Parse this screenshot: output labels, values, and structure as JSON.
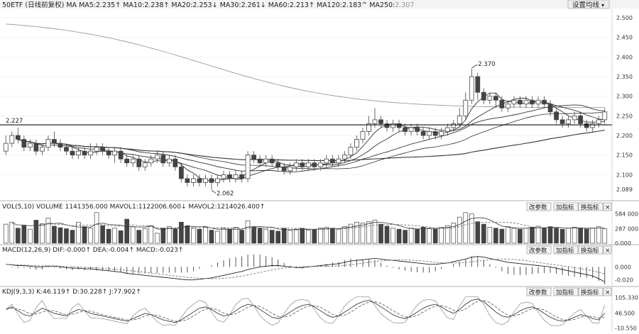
{
  "header": {
    "symbol": "50ETF (日线前复权)",
    "indicator": "MA",
    "ma_values": [
      {
        "label": "MA5:",
        "value": "2.235",
        "arrow": "↑"
      },
      {
        "label": "MA10:",
        "value": "2.238",
        "arrow": "↑"
      },
      {
        "label": "MA20:",
        "value": "2.253",
        "arrow": "↓"
      },
      {
        "label": "MA30:",
        "value": "2.261",
        "arrow": "↓"
      },
      {
        "label": "MA60:",
        "value": "2.213",
        "arrow": "↑"
      },
      {
        "label": "MA120:",
        "value": "2.183",
        "arrow": "^"
      },
      {
        "label": "MA250:",
        "value": "2.307",
        "arrow": ""
      }
    ],
    "settings_button": "设置均线",
    "settings_arrow": "▾"
  },
  "main_panel": {
    "y_ticks": [
      "2.500",
      "2.450",
      "2.400",
      "2.350",
      "2.300",
      "2.250",
      "2.200",
      "2.150",
      "2.100"
    ],
    "y_bottom_label": "2.089",
    "ref_line_label": "2.227",
    "high_annotation": "2.370",
    "low_annotation": "2.062"
  },
  "vol_panel": {
    "title": "VOL(5,10)",
    "volume_label": "VOLUME",
    "volume_value": "1141356.000",
    "mavol1_label": "MAVOL1:",
    "mavol1_value": "1122006.600",
    "mavol1_arrow": "↓",
    "mavol2_label": "MAVOL2:",
    "mavol2_value": "1214026.400",
    "mavol2_arrow": "↑",
    "y_ticks": [
      "584 000",
      "287 000",
      "0.000"
    ],
    "buttons": [
      "改参数",
      "加指标",
      "换指标"
    ],
    "close": "×"
  },
  "macd_panel": {
    "title": "MACD(12,26,9)",
    "dif_label": "DIF:",
    "dif_value": "-0.000",
    "dif_arrow": "↑",
    "dea_label": "DEA:",
    "dea_value": "-0.004",
    "dea_arrow": "↑",
    "macd_label": "MACD:",
    "macd_value": "-0.023",
    "macd_arrow": "↑",
    "y_ticks": [
      "0.000",
      "-0.020"
    ],
    "buttons": [
      "改参数",
      "加指标",
      "换指标"
    ],
    "close": "×"
  },
  "kdj_panel": {
    "title": "KDJ(9,3,3)",
    "k_label": "K:",
    "k_value": "46.119",
    "k_arrow": "↑",
    "d_label": "D:",
    "d_value": "30.228",
    "d_arrow": "↑",
    "j_label": "J:",
    "j_value": "77.902",
    "j_arrow": "↑",
    "y_ticks": [
      "105.330",
      "46.500",
      "-10.550"
    ],
    "buttons": [
      "改参数",
      "加指标",
      "换指标"
    ],
    "close": "×"
  },
  "colors": {
    "background": "#ffffff",
    "candle_up": "#444444",
    "candle_down": "#444444",
    "ma_line": "#333333",
    "ma250_line": "#999999",
    "ref_line": "#111111",
    "grid": "#dddddd"
  },
  "chart_data": {
    "type": "candlestick",
    "title": "50ETF (日线前复权)",
    "ylim": [
      2.05,
      2.52
    ],
    "reference_line": 2.227,
    "high_marker": 2.37,
    "low_marker": 2.062,
    "candles": [
      [
        2.16,
        2.18,
        2.2,
        2.15
      ],
      [
        2.18,
        2.2,
        2.21,
        2.17
      ],
      [
        2.2,
        2.19,
        2.22,
        2.18
      ],
      [
        2.19,
        2.17,
        2.2,
        2.16
      ],
      [
        2.17,
        2.18,
        2.19,
        2.16
      ],
      [
        2.18,
        2.16,
        2.19,
        2.15
      ],
      [
        2.16,
        2.17,
        2.18,
        2.15
      ],
      [
        2.17,
        2.19,
        2.2,
        2.16
      ],
      [
        2.19,
        2.18,
        2.21,
        2.17
      ],
      [
        2.18,
        2.17,
        2.19,
        2.16
      ],
      [
        2.17,
        2.16,
        2.18,
        2.15
      ],
      [
        2.16,
        2.15,
        2.17,
        2.14
      ],
      [
        2.15,
        2.16,
        2.17,
        2.14
      ],
      [
        2.16,
        2.15,
        2.17,
        2.14
      ],
      [
        2.15,
        2.16,
        2.18,
        2.14
      ],
      [
        2.16,
        2.17,
        2.18,
        2.15
      ],
      [
        2.17,
        2.16,
        2.18,
        2.15
      ],
      [
        2.16,
        2.15,
        2.17,
        2.14
      ],
      [
        2.15,
        2.16,
        2.17,
        2.13
      ],
      [
        2.16,
        2.14,
        2.17,
        2.13
      ],
      [
        2.14,
        2.13,
        2.15,
        2.12
      ],
      [
        2.13,
        2.14,
        2.15,
        2.12
      ],
      [
        2.14,
        2.12,
        2.15,
        2.11
      ],
      [
        2.12,
        2.13,
        2.14,
        2.11
      ],
      [
        2.13,
        2.14,
        2.15,
        2.12
      ],
      [
        2.14,
        2.15,
        2.16,
        2.13
      ],
      [
        2.15,
        2.13,
        2.16,
        2.12
      ],
      [
        2.13,
        2.14,
        2.15,
        2.12
      ],
      [
        2.14,
        2.12,
        2.15,
        2.11
      ],
      [
        2.12,
        2.09,
        2.13,
        2.08
      ],
      [
        2.09,
        2.08,
        2.1,
        2.07
      ],
      [
        2.08,
        2.09,
        2.1,
        2.07
      ],
      [
        2.09,
        2.08,
        2.1,
        2.07
      ],
      [
        2.08,
        2.09,
        2.1,
        2.07
      ],
      [
        2.09,
        2.08,
        2.1,
        2.062
      ],
      [
        2.08,
        2.09,
        2.1,
        2.07
      ],
      [
        2.09,
        2.1,
        2.11,
        2.08
      ],
      [
        2.1,
        2.09,
        2.11,
        2.08
      ],
      [
        2.09,
        2.1,
        2.11,
        2.08
      ],
      [
        2.1,
        2.09,
        2.11,
        2.08
      ],
      [
        2.09,
        2.15,
        2.16,
        2.08
      ],
      [
        2.15,
        2.14,
        2.16,
        2.13
      ],
      [
        2.14,
        2.13,
        2.15,
        2.12
      ],
      [
        2.13,
        2.14,
        2.15,
        2.12
      ],
      [
        2.14,
        2.13,
        2.15,
        2.12
      ],
      [
        2.13,
        2.12,
        2.14,
        2.11
      ],
      [
        2.12,
        2.11,
        2.13,
        2.1
      ],
      [
        2.11,
        2.12,
        2.13,
        2.1
      ],
      [
        2.12,
        2.13,
        2.14,
        2.11
      ],
      [
        2.13,
        2.12,
        2.14,
        2.11
      ],
      [
        2.12,
        2.13,
        2.14,
        2.11
      ],
      [
        2.13,
        2.12,
        2.14,
        2.11
      ],
      [
        2.12,
        2.13,
        2.14,
        2.11
      ],
      [
        2.13,
        2.14,
        2.15,
        2.12
      ],
      [
        2.14,
        2.13,
        2.15,
        2.12
      ],
      [
        2.13,
        2.14,
        2.15,
        2.12
      ],
      [
        2.14,
        2.15,
        2.16,
        2.13
      ],
      [
        2.15,
        2.17,
        2.18,
        2.14
      ],
      [
        2.17,
        2.19,
        2.2,
        2.16
      ],
      [
        2.19,
        2.21,
        2.22,
        2.18
      ],
      [
        2.21,
        2.23,
        2.25,
        2.2
      ],
      [
        2.23,
        2.24,
        2.27,
        2.22
      ],
      [
        2.24,
        2.23,
        2.25,
        2.22
      ],
      [
        2.23,
        2.22,
        2.24,
        2.21
      ],
      [
        2.22,
        2.23,
        2.24,
        2.21
      ],
      [
        2.23,
        2.22,
        2.24,
        2.21
      ],
      [
        2.22,
        2.21,
        2.23,
        2.2
      ],
      [
        2.21,
        2.22,
        2.23,
        2.2
      ],
      [
        2.22,
        2.21,
        2.23,
        2.2
      ],
      [
        2.21,
        2.2,
        2.22,
        2.19
      ],
      [
        2.2,
        2.21,
        2.22,
        2.19
      ],
      [
        2.21,
        2.2,
        2.22,
        2.19
      ],
      [
        2.2,
        2.21,
        2.22,
        2.19
      ],
      [
        2.21,
        2.22,
        2.23,
        2.2
      ],
      [
        2.22,
        2.23,
        2.24,
        2.21
      ],
      [
        2.23,
        2.25,
        2.27,
        2.22
      ],
      [
        2.25,
        2.29,
        2.31,
        2.24
      ],
      [
        2.29,
        2.35,
        2.37,
        2.28
      ],
      [
        2.35,
        2.31,
        2.36,
        2.29
      ],
      [
        2.31,
        2.29,
        2.32,
        2.28
      ],
      [
        2.29,
        2.3,
        2.31,
        2.28
      ],
      [
        2.3,
        2.29,
        2.31,
        2.27
      ],
      [
        2.29,
        2.27,
        2.3,
        2.26
      ],
      [
        2.27,
        2.28,
        2.29,
        2.26
      ],
      [
        2.28,
        2.29,
        2.3,
        2.27
      ],
      [
        2.29,
        2.28,
        2.3,
        2.27
      ],
      [
        2.28,
        2.29,
        2.3,
        2.27
      ],
      [
        2.29,
        2.28,
        2.3,
        2.27
      ],
      [
        2.28,
        2.29,
        2.3,
        2.27
      ],
      [
        2.29,
        2.28,
        2.3,
        2.27
      ],
      [
        2.28,
        2.26,
        2.29,
        2.25
      ],
      [
        2.26,
        2.24,
        2.27,
        2.23
      ],
      [
        2.24,
        2.23,
        2.25,
        2.22
      ],
      [
        2.23,
        2.24,
        2.25,
        2.22
      ],
      [
        2.24,
        2.25,
        2.26,
        2.23
      ],
      [
        2.25,
        2.23,
        2.26,
        2.22
      ],
      [
        2.23,
        2.22,
        2.24,
        2.21
      ],
      [
        2.22,
        2.23,
        2.24,
        2.21
      ],
      [
        2.23,
        2.24,
        2.25,
        2.22
      ],
      [
        2.24,
        2.26,
        2.27,
        2.23
      ]
    ],
    "volume": [
      380,
      420,
      300,
      350,
      280,
      460,
      390,
      500,
      340,
      310,
      290,
      260,
      420,
      330,
      300,
      610,
      350,
      280,
      300,
      250,
      480,
      330,
      260,
      290,
      350,
      200,
      300,
      330,
      280,
      420,
      350,
      300,
      280,
      320,
      260,
      240,
      300,
      280,
      320,
      260,
      450,
      330,
      300,
      280,
      260,
      240,
      300,
      260,
      280,
      300,
      260,
      280,
      300,
      320,
      300,
      280,
      330,
      380,
      420,
      400,
      430,
      460,
      380,
      340,
      300,
      280,
      260,
      300,
      280,
      320,
      300,
      280,
      320,
      350,
      400,
      520,
      610,
      584,
      430,
      380,
      320,
      300,
      280,
      330,
      300,
      280,
      300,
      320,
      340,
      300,
      330,
      300,
      280,
      300,
      320,
      300,
      280,
      300,
      330,
      287
    ],
    "macd": [
      0.004,
      0.003,
      0.002,
      0.002,
      0.001,
      0.0,
      0.0,
      0.001,
      0.001,
      0.0,
      -0.001,
      -0.002,
      -0.002,
      -0.003,
      -0.003,
      -0.004,
      -0.005,
      -0.006,
      -0.007,
      -0.008,
      -0.01,
      -0.011,
      -0.012,
      -0.013,
      -0.014,
      -0.015,
      -0.016,
      -0.017,
      -0.018,
      -0.019,
      -0.02,
      -0.02,
      -0.019,
      -0.018,
      -0.017,
      -0.015,
      -0.013,
      -0.011,
      -0.009,
      -0.007,
      -0.004,
      -0.002,
      0.0,
      0.001,
      0.002,
      0.002,
      0.001,
      0.0,
      -0.001,
      -0.001,
      0.0,
      0.001,
      0.002,
      0.003,
      0.004,
      0.005,
      0.007,
      0.009,
      0.01,
      0.011,
      0.012,
      0.013,
      0.012,
      0.011,
      0.01,
      0.009,
      0.008,
      0.007,
      0.006,
      0.005,
      0.004,
      0.004,
      0.005,
      0.006,
      0.008,
      0.01,
      0.012,
      0.015,
      0.016,
      0.015,
      0.013,
      0.011,
      0.009,
      0.007,
      0.006,
      0.005,
      0.004,
      0.003,
      0.002,
      0.001,
      0.0,
      -0.002,
      -0.004,
      -0.006,
      -0.008,
      -0.01,
      -0.012,
      -0.014,
      -0.018,
      -0.023
    ],
    "kdj": [
      60,
      70,
      55,
      40,
      35,
      50,
      65,
      55,
      45,
      40,
      35,
      50,
      60,
      55,
      45,
      40,
      35,
      30,
      25,
      20,
      15,
      25,
      35,
      45,
      40,
      30,
      20,
      15,
      10,
      20,
      35,
      50,
      65,
      70,
      60,
      45,
      35,
      40,
      55,
      70,
      80,
      75,
      60,
      45,
      30,
      25,
      35,
      50,
      65,
      75,
      80,
      70,
      55,
      40,
      30,
      35,
      50,
      65,
      80,
      90,
      95,
      85,
      70,
      55,
      40,
      30,
      25,
      35,
      50,
      65,
      75,
      80,
      70,
      55,
      45,
      60,
      80,
      95,
      100,
      90,
      70,
      50,
      35,
      30,
      40,
      55,
      65,
      70,
      60,
      45,
      30,
      20,
      15,
      20,
      30,
      40,
      35,
      25,
      20,
      46
    ]
  }
}
